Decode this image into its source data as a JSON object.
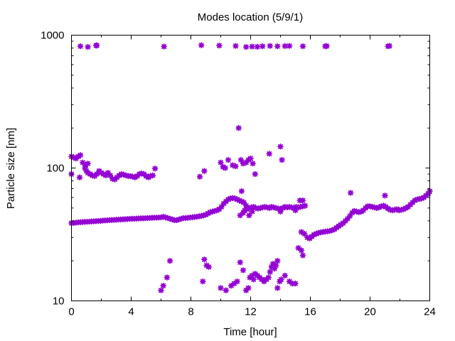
{
  "chart_data": {
    "type": "scatter",
    "title": "Modes location (5/9/1)",
    "xlabel": "Time [hour]",
    "ylabel": "Particle size [nm]",
    "xlim": [
      0,
      24
    ],
    "ylim": [
      10,
      1000
    ],
    "yscale": "log",
    "x_ticks": [
      0,
      4,
      8,
      12,
      16,
      20,
      24
    ],
    "y_ticks": [
      10,
      100,
      1000
    ],
    "grid": false,
    "legend": "none",
    "marker_color": "#9400d3",
    "series": [
      {
        "name": "",
        "points": [
          [
            0.0,
            38.5
          ],
          [
            0.15,
            38.6
          ],
          [
            0.3,
            38.8
          ],
          [
            0.45,
            39.0
          ],
          [
            0.6,
            39.1
          ],
          [
            0.75,
            39.2
          ],
          [
            0.9,
            39.3
          ],
          [
            1.05,
            39.4
          ],
          [
            1.2,
            39.5
          ],
          [
            1.35,
            39.6
          ],
          [
            1.5,
            39.7
          ],
          [
            1.65,
            39.8
          ],
          [
            1.8,
            39.9
          ],
          [
            1.95,
            40.0
          ],
          [
            2.1,
            40.2
          ],
          [
            2.25,
            40.3
          ],
          [
            2.4,
            40.4
          ],
          [
            2.55,
            40.5
          ],
          [
            2.7,
            40.6
          ],
          [
            2.85,
            40.7
          ],
          [
            3.0,
            40.8
          ],
          [
            3.15,
            40.9
          ],
          [
            3.3,
            41.0
          ],
          [
            3.45,
            41.1
          ],
          [
            3.6,
            41.2
          ],
          [
            3.75,
            41.3
          ],
          [
            3.9,
            41.4
          ],
          [
            4.05,
            41.5
          ],
          [
            4.2,
            41.5
          ],
          [
            4.35,
            41.6
          ],
          [
            4.5,
            41.7
          ],
          [
            4.65,
            41.8
          ],
          [
            4.8,
            41.8
          ],
          [
            4.95,
            41.9
          ],
          [
            5.1,
            42.0
          ],
          [
            5.25,
            42.1
          ],
          [
            5.4,
            42.2
          ],
          [
            5.55,
            42.3
          ],
          [
            5.7,
            42.3
          ],
          [
            5.85,
            42.4
          ],
          [
            6.0,
            42.5
          ],
          [
            6.15,
            43.0
          ],
          [
            6.3,
            42.5
          ],
          [
            6.45,
            42.0
          ],
          [
            6.6,
            41.5
          ],
          [
            6.75,
            41.0
          ],
          [
            6.9,
            40.5
          ],
          [
            7.05,
            40.5
          ],
          [
            7.2,
            41.0
          ],
          [
            7.35,
            41.5
          ],
          [
            7.5,
            42.0
          ],
          [
            7.65,
            42.0
          ],
          [
            7.8,
            42.2
          ],
          [
            7.95,
            42.4
          ],
          [
            8.1,
            42.6
          ],
          [
            8.25,
            42.8
          ],
          [
            8.4,
            43.0
          ],
          [
            8.55,
            43.3
          ],
          [
            8.7,
            43.6
          ],
          [
            8.85,
            44.0
          ],
          [
            9.0,
            44.5
          ],
          [
            9.15,
            45.5
          ],
          [
            9.3,
            46.5
          ],
          [
            9.45,
            47.0
          ],
          [
            9.6,
            47.5
          ],
          [
            9.75,
            48.0
          ],
          [
            9.9,
            49.0
          ],
          [
            10.05,
            51.0
          ],
          [
            10.2,
            54.0
          ],
          [
            10.35,
            56.0
          ],
          [
            10.5,
            58.0
          ],
          [
            10.65,
            59.0
          ],
          [
            10.8,
            59.5
          ],
          [
            10.95,
            59.0
          ],
          [
            11.1,
            58.0
          ],
          [
            11.25,
            57.0
          ],
          [
            11.4,
            56.0
          ],
          [
            11.55,
            55.0
          ],
          [
            11.6,
            48.0
          ],
          [
            11.75,
            49.0
          ],
          [
            11.9,
            50.0
          ],
          [
            12.05,
            50.5
          ],
          [
            12.2,
            51.0
          ],
          [
            12.35,
            50.0
          ],
          [
            12.5,
            49.5
          ],
          [
            12.65,
            50.0
          ],
          [
            12.8,
            50.5
          ],
          [
            12.95,
            51.0
          ],
          [
            13.1,
            50.5
          ],
          [
            13.25,
            50.0
          ],
          [
            13.4,
            51.0
          ],
          [
            13.55,
            50.5
          ],
          [
            13.7,
            50.0
          ],
          [
            13.85,
            49.5
          ],
          [
            14.0,
            49.0
          ],
          [
            14.15,
            50.0
          ],
          [
            14.3,
            51.0
          ],
          [
            14.45,
            50.5
          ],
          [
            14.6,
            51.0
          ],
          [
            14.75,
            50.5
          ],
          [
            14.9,
            50.0
          ],
          [
            15.05,
            51.0
          ],
          [
            15.2,
            50.5
          ],
          [
            15.35,
            51.0
          ],
          [
            15.5,
            51.5
          ],
          [
            15.65,
            52.0
          ],
          [
            11.3,
            44.0
          ],
          [
            11.5,
            46.0
          ],
          [
            11.7,
            52.0
          ],
          [
            11.9,
            44.0
          ],
          [
            12.1,
            47.0
          ],
          [
            14.0,
            47.0
          ],
          [
            15.0,
            48.0
          ],
          [
            15.3,
            57.0
          ],
          [
            11.4,
            67.0
          ],
          [
            15.4,
            33.0
          ],
          [
            15.6,
            32.0
          ],
          [
            15.8,
            30.0
          ],
          [
            15.95,
            29.5
          ],
          [
            16.1,
            30.5
          ],
          [
            16.25,
            31.5
          ],
          [
            16.4,
            32.0
          ],
          [
            16.55,
            32.5
          ],
          [
            16.7,
            32.8
          ],
          [
            16.85,
            33.0
          ],
          [
            17.0,
            33.2
          ],
          [
            17.15,
            33.4
          ],
          [
            17.3,
            33.6
          ],
          [
            17.45,
            34.0
          ],
          [
            17.6,
            34.5
          ],
          [
            17.75,
            35.5
          ],
          [
            17.9,
            36.5
          ],
          [
            18.05,
            37.5
          ],
          [
            18.2,
            38.5
          ],
          [
            18.35,
            40.0
          ],
          [
            18.5,
            41.5
          ],
          [
            18.65,
            43.5
          ],
          [
            18.8,
            46.0
          ],
          [
            18.95,
            47.5
          ],
          [
            19.1,
            47.0
          ],
          [
            19.25,
            46.5
          ],
          [
            19.4,
            47.0
          ],
          [
            19.55,
            48.0
          ],
          [
            19.7,
            50.0
          ],
          [
            19.85,
            51.5
          ],
          [
            20.0,
            51.5
          ],
          [
            20.15,
            51.0
          ],
          [
            20.3,
            50.5
          ],
          [
            20.45,
            50.0
          ],
          [
            20.6,
            50.5
          ],
          [
            20.75,
            51.5
          ],
          [
            20.9,
            52.0
          ],
          [
            21.05,
            51.0
          ],
          [
            21.2,
            49.5
          ],
          [
            21.35,
            48.5
          ],
          [
            21.5,
            48.0
          ],
          [
            21.65,
            48.5
          ],
          [
            21.8,
            49.0
          ],
          [
            21.95,
            48.0
          ],
          [
            22.1,
            48.5
          ],
          [
            22.25,
            49.0
          ],
          [
            22.4,
            50.0
          ],
          [
            22.55,
            51.0
          ],
          [
            22.7,
            53.0
          ],
          [
            22.85,
            55.0
          ],
          [
            23.0,
            57.0
          ],
          [
            23.15,
            58.0
          ],
          [
            23.3,
            58.5
          ],
          [
            23.45,
            59.0
          ],
          [
            23.6,
            60.0
          ],
          [
            23.75,
            62.0
          ],
          [
            23.9,
            64.0
          ],
          [
            24.0,
            67.0
          ],
          [
            15.2,
            25.0
          ],
          [
            15.4,
            24.0
          ],
          [
            15.5,
            22.0
          ],
          [
            18.7,
            65.0
          ],
          [
            21.0,
            62.0
          ],
          [
            15.5,
            57.0
          ],
          [
            0.0,
            122.0
          ],
          [
            0.15,
            120.0
          ],
          [
            0.3,
            118.0
          ],
          [
            0.45,
            122.0
          ],
          [
            0.6,
            125.0
          ],
          [
            0.75,
            110.0
          ],
          [
            0.9,
            100.0
          ],
          [
            1.0,
            95.0
          ],
          [
            1.1,
            92.0
          ],
          [
            1.25,
            90.0
          ],
          [
            1.4,
            88.0
          ],
          [
            1.55,
            87.0
          ],
          [
            1.7,
            90.0
          ],
          [
            1.85,
            95.0
          ],
          [
            2.0,
            92.0
          ],
          [
            2.15,
            90.0
          ],
          [
            2.3,
            88.0
          ],
          [
            2.45,
            92.0
          ],
          [
            2.6,
            88.0
          ],
          [
            2.75,
            83.0
          ],
          [
            2.9,
            82.0
          ],
          [
            3.05,
            85.0
          ],
          [
            3.2,
            88.0
          ],
          [
            3.35,
            90.0
          ],
          [
            3.5,
            89.0
          ],
          [
            3.65,
            88.0
          ],
          [
            3.8,
            87.0
          ],
          [
            3.95,
            87.0
          ],
          [
            4.1,
            86.0
          ],
          [
            4.25,
            85.0
          ],
          [
            4.4,
            87.0
          ],
          [
            4.55,
            90.0
          ],
          [
            4.7,
            91.0
          ],
          [
            4.85,
            90.0
          ],
          [
            5.0,
            87.0
          ],
          [
            5.15,
            85.0
          ],
          [
            5.3,
            87.0
          ],
          [
            5.45,
            88.0
          ],
          [
            5.6,
            99.0
          ],
          [
            0.0,
            90.0
          ],
          [
            0.55,
            85.0
          ],
          [
            0.95,
            105.0
          ],
          [
            1.1,
            108.0
          ],
          [
            8.6,
            86.0
          ],
          [
            8.9,
            95.0
          ],
          [
            10.0,
            110.0
          ],
          [
            10.15,
            102.0
          ],
          [
            10.3,
            100.0
          ],
          [
            10.5,
            115.0
          ],
          [
            10.8,
            105.0
          ],
          [
            11.0,
            103.0
          ],
          [
            11.2,
            200.0
          ],
          [
            11.35,
            115.0
          ],
          [
            11.5,
            108.0
          ],
          [
            11.7,
            110.0
          ],
          [
            11.85,
            115.0
          ],
          [
            12.0,
            118.0
          ],
          [
            12.15,
            108.0
          ],
          [
            12.3,
            90.0
          ],
          [
            13.25,
            128.0
          ],
          [
            14.0,
            145.0
          ],
          [
            14.1,
            115.0
          ],
          [
            0.6,
            825.0
          ],
          [
            1.1,
            815.0
          ],
          [
            1.65,
            835.0
          ],
          [
            1.7,
            838.0
          ],
          [
            6.2,
            820.0
          ],
          [
            8.7,
            840.0
          ],
          [
            9.9,
            835.0
          ],
          [
            11.0,
            830.0
          ],
          [
            11.7,
            815.0
          ],
          [
            12.1,
            820.0
          ],
          [
            12.45,
            818.0
          ],
          [
            12.8,
            825.0
          ],
          [
            13.3,
            830.0
          ],
          [
            13.8,
            825.0
          ],
          [
            14.3,
            828.0
          ],
          [
            14.6,
            830.0
          ],
          [
            15.5,
            825.0
          ],
          [
            17.0,
            825.0
          ],
          [
            17.1,
            828.0
          ],
          [
            21.2,
            825.0
          ],
          [
            21.3,
            830.0
          ],
          [
            6.0,
            12.0
          ],
          [
            6.15,
            13.0
          ],
          [
            6.4,
            15.0
          ],
          [
            6.6,
            20.0
          ],
          [
            8.8,
            14.0
          ],
          [
            8.9,
            20.5
          ],
          [
            9.05,
            18.5
          ],
          [
            9.2,
            18.0
          ],
          [
            10.0,
            12.5
          ],
          [
            10.35,
            12.0
          ],
          [
            10.7,
            13.0
          ],
          [
            10.9,
            13.5
          ],
          [
            11.1,
            14.0
          ],
          [
            11.3,
            19.5
          ],
          [
            11.5,
            17.0
          ],
          [
            11.7,
            12.0
          ],
          [
            11.85,
            12.5
          ],
          [
            11.95,
            15.0
          ],
          [
            12.1,
            15.5
          ],
          [
            12.2,
            14.5
          ],
          [
            12.3,
            16.0
          ],
          [
            12.45,
            15.5
          ],
          [
            12.6,
            15.0
          ],
          [
            12.75,
            14.5
          ],
          [
            12.9,
            14.0
          ],
          [
            13.05,
            14.5
          ],
          [
            13.2,
            15.0
          ],
          [
            13.3,
            16.5
          ],
          [
            13.4,
            18.0
          ],
          [
            13.5,
            19.0
          ],
          [
            13.6,
            17.5
          ],
          [
            13.7,
            18.5
          ],
          [
            13.8,
            20.0
          ],
          [
            13.95,
            14.0
          ],
          [
            14.05,
            14.5
          ],
          [
            14.3,
            15.5
          ],
          [
            14.6,
            14.0
          ],
          [
            14.8,
            13.5
          ],
          [
            15.0,
            13.5
          ],
          [
            13.8,
            12.5
          ]
        ]
      }
    ]
  }
}
